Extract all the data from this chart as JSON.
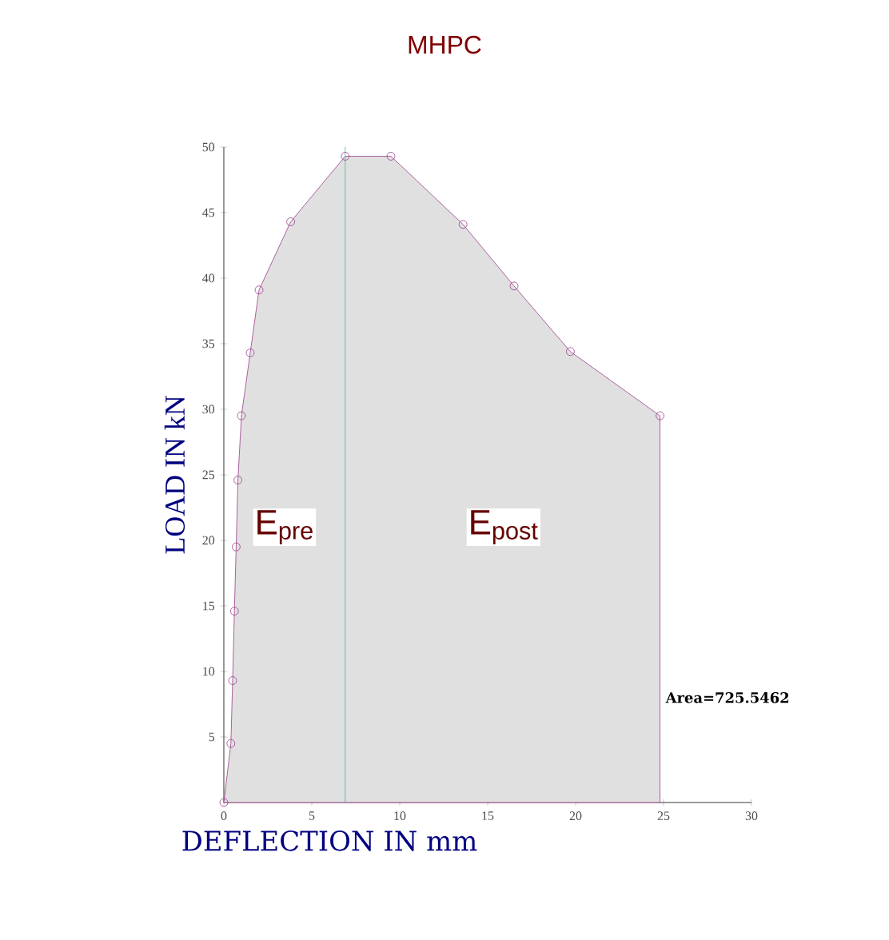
{
  "chart_data": {
    "type": "area",
    "title": "MHPC",
    "xlabel": "DEFLECTION IN mm",
    "ylabel": "LOAD IN kN",
    "x": [
      0,
      0.4,
      0.5,
      0.6,
      0.7,
      0.8,
      1.0,
      1.5,
      2.0,
      3.8,
      6.9,
      9.5,
      13.6,
      16.5,
      19.7,
      24.8
    ],
    "series": [
      {
        "color": "#9b3c8c",
        "values": [
          0,
          4.5,
          9.3,
          14.6,
          19.5,
          24.6,
          29.5,
          34.3,
          39.1,
          44.3,
          49.3,
          49.3,
          44.1,
          39.4,
          34.4,
          29.5
        ]
      }
    ],
    "xlim": [
      0,
      30
    ],
    "ylim": [
      0,
      50
    ],
    "xticks": [
      0,
      5,
      10,
      15,
      20,
      25,
      30
    ],
    "yticks": [
      5,
      10,
      15,
      20,
      25,
      30,
      35,
      40,
      45,
      50
    ],
    "marker": "circle",
    "ref_lines": [
      {
        "axis": "x",
        "value": 6.9,
        "color": "#3fb6b6"
      }
    ],
    "annotations": [
      "E$_{pre}$",
      "E$_{post}$",
      {
        "text": "Area=725.5462",
        "x": 24.8,
        "y": 8
      }
    ]
  }
}
